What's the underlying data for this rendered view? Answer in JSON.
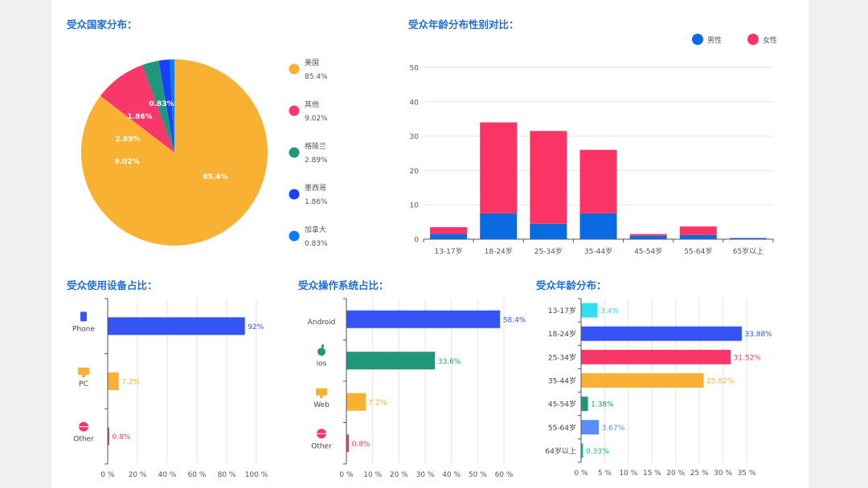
{
  "colors": {
    "title": "#1f6fd6",
    "orange": "#f8b133",
    "pink": "#f8376b",
    "green": "#22967a",
    "navy": "#1a3fff",
    "blue": "#0a7bff",
    "male": "#0a6adf",
    "female": "#fb3466",
    "device_blue": "#3554f6",
    "cyan": "#2ee0f2",
    "mid_blue": "#5a8df5",
    "light_green": "#0cc1a1"
  },
  "titles": {
    "country": "受众国家分布：",
    "gender": "受众年龄分布性别对比：",
    "device": "受众使用设备占比：",
    "os": "受众操作系统占比：",
    "age": "受众年龄分布："
  },
  "chart_data": [
    {
      "id": "country",
      "type": "pie",
      "labels": [
        "美国",
        "其他",
        "格陵兰",
        "墨西哥",
        "加拿大"
      ],
      "values": [
        85.4,
        9.02,
        2.89,
        1.86,
        0.83
      ],
      "value_labels": [
        "85.4%",
        "9.02%",
        "2.89%",
        "1.86%",
        "0.83%"
      ],
      "colors": [
        "#f8b133",
        "#f8376b",
        "#22967a",
        "#1a3fff",
        "#0a7bff"
      ],
      "legend": "right"
    },
    {
      "id": "gender",
      "type": "bar",
      "stacked": true,
      "categories": [
        "13-17岁",
        "18-24岁",
        "25-34岁",
        "35-44岁",
        "45-54岁",
        "55-64岁",
        "65岁以上"
      ],
      "series": [
        {
          "name": "男性",
          "values": [
            1.5,
            7.5,
            4.5,
            7.5,
            1.0,
            1.2,
            0.3
          ],
          "color": "#0a6adf"
        },
        {
          "name": "女性",
          "values": [
            2.0,
            26.5,
            27.0,
            18.5,
            0.5,
            2.5,
            0.1
          ],
          "color": "#fb3466"
        }
      ],
      "yticks": [
        0,
        10,
        20,
        30,
        40,
        50
      ],
      "ylim": [
        0,
        50
      ],
      "grid": true,
      "legend": "top-right"
    },
    {
      "id": "device",
      "type": "bar",
      "orientation": "horizontal",
      "categories": [
        "Phone",
        "PC",
        "Other"
      ],
      "values": [
        92,
        7.2,
        0.8
      ],
      "value_labels": [
        "92%",
        "7.2%",
        "0.8%"
      ],
      "colors": [
        "#3554f6",
        "#f8b133",
        "#f8376b"
      ],
      "icons": [
        "phone-icon",
        "pc-icon",
        "globe-icon"
      ],
      "xticks": [
        "0 %",
        "20 %",
        "40 %",
        "60 %",
        "80 %",
        "100 %"
      ],
      "xlim": [
        0,
        100
      ],
      "grid": true
    },
    {
      "id": "os",
      "type": "bar",
      "orientation": "horizontal",
      "categories": [
        "Android",
        "ios",
        "Web",
        "Other"
      ],
      "values": [
        58.4,
        33.6,
        7.2,
        0.8
      ],
      "value_labels": [
        "58.4%",
        "33.6%",
        "7.2%",
        "0.8%"
      ],
      "colors": [
        "#3554f6",
        "#22967a",
        "#f8b133",
        "#f8376b"
      ],
      "icons": [
        "",
        "apple-icon",
        "web-icon",
        "globe-icon"
      ],
      "xticks": [
        "0 %",
        "10 %",
        "20 %",
        "30 %",
        "40 %",
        "50 %",
        "60 %"
      ],
      "xlim": [
        0,
        60
      ],
      "grid": true
    },
    {
      "id": "age",
      "type": "bar",
      "orientation": "horizontal",
      "categories": [
        "13-17岁",
        "18-24岁",
        "25-34岁",
        "35-44岁",
        "45-54岁",
        "55-64岁",
        "64岁以上"
      ],
      "values": [
        3.4,
        33.88,
        31.52,
        25.82,
        1.38,
        3.67,
        0.33
      ],
      "value_labels": [
        "3.4%",
        "33.88%",
        "31.52%",
        "25.82%",
        "1.38%",
        "3.67%",
        "0.33%"
      ],
      "colors": [
        "#2ee0f2",
        "#3554f6",
        "#f8376b",
        "#f8b133",
        "#22967a",
        "#5a8df5",
        "#0cc1a1"
      ],
      "xticks": [
        "0 %",
        "5 %",
        "10 %",
        "15 %",
        "20 %",
        "25 %",
        "30 %",
        "35 %"
      ],
      "xlim": [
        0,
        35
      ],
      "grid": true
    }
  ]
}
